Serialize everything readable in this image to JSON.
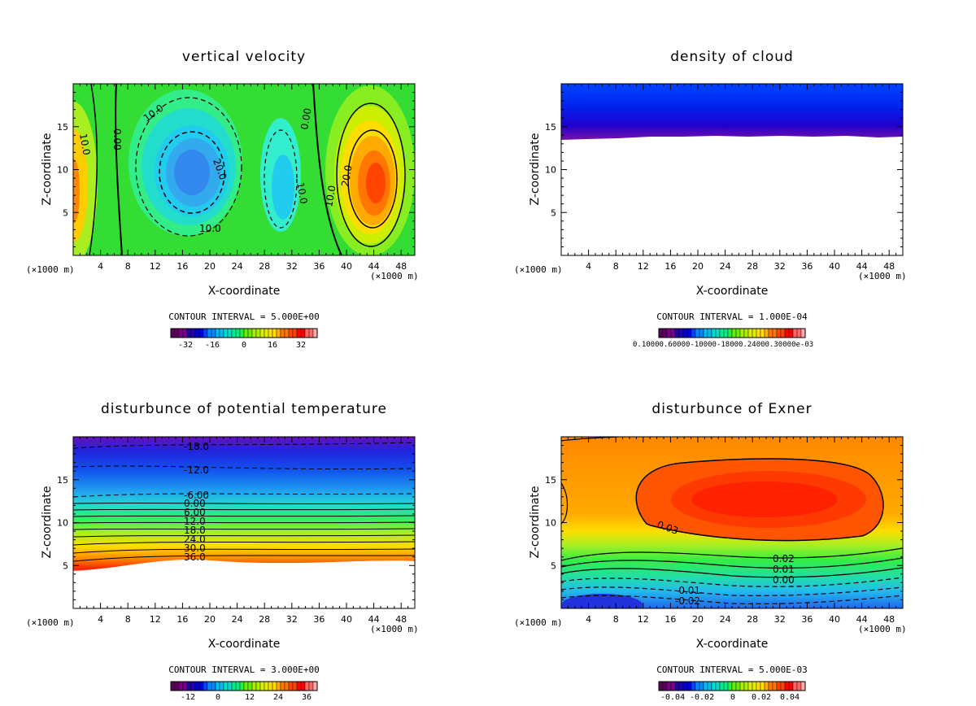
{
  "chart_data": [
    {
      "type": "heatmap",
      "title": "vertical velocity",
      "xlabel": "X-coordinate",
      "ylabel": "Z-coordinate",
      "x_unit": "(×1000 m)",
      "z_unit": "(×1000 m)",
      "xlim": [
        0,
        50
      ],
      "ylim": [
        0,
        20
      ],
      "xticks": [
        4,
        8,
        12,
        16,
        20,
        24,
        28,
        32,
        36,
        40,
        44,
        48
      ],
      "yticks": [
        5,
        10,
        15
      ],
      "contour_interval": "CONTOUR INTERVAL = 5.000E+00",
      "contour_labels": [
        "10.0",
        "0.00",
        "10.0",
        "20.0",
        "10.0",
        "0.00",
        "10.0",
        "10.0",
        "20.0"
      ],
      "colorbar": {
        "ticks": [
          "-32",
          "-16",
          "0",
          "16",
          "32"
        ],
        "range": [
          -36,
          36
        ]
      }
    },
    {
      "type": "heatmap",
      "title": "density of cloud",
      "xlabel": "X-coordinate",
      "ylabel": "Z-coordinate",
      "x_unit": "(×1000 m)",
      "z_unit": "(×1000 m)",
      "xlim": [
        0,
        50
      ],
      "ylim": [
        0,
        20
      ],
      "xticks": [
        4,
        8,
        12,
        16,
        20,
        24,
        28,
        32,
        36,
        40,
        44,
        48
      ],
      "yticks": [
        5,
        10,
        15
      ],
      "contour_interval": "CONTOUR INTERVAL = 1.000E-04",
      "contour_labels": [],
      "colorbar": {
        "ticks_text": "0.10000.60000-10000-18000.24000.30000e-03",
        "range": [
          0,
          0.0012
        ]
      }
    },
    {
      "type": "heatmap",
      "title": "disturbunce of potential temperature",
      "xlabel": "X-coordinate",
      "ylabel": "Z-coordinate",
      "x_unit": "(×1000 m)",
      "z_unit": "(×1000 m)",
      "xlim": [
        0,
        50
      ],
      "ylim": [
        0,
        20
      ],
      "xticks": [
        4,
        8,
        12,
        16,
        20,
        24,
        28,
        32,
        36,
        40,
        44,
        48
      ],
      "yticks": [
        5,
        10,
        15
      ],
      "contour_interval": "CONTOUR INTERVAL = 3.000E+00",
      "contour_labels": [
        "-18.0",
        "-12.0",
        "-6.00",
        "0.00",
        "6.00",
        "12.0",
        "18.0",
        "24.0",
        "30.0",
        "36.0"
      ],
      "colorbar": {
        "ticks": [
          "-12",
          "0",
          "12",
          "24",
          "36"
        ],
        "range": [
          -18,
          42
        ]
      }
    },
    {
      "type": "heatmap",
      "title": "disturbunce of Exner",
      "xlabel": "X-coordinate",
      "ylabel": "Z-coordinate",
      "x_unit": "(×1000 m)",
      "z_unit": "(×1000 m)",
      "xlim": [
        0,
        50
      ],
      "ylim": [
        0,
        20
      ],
      "xticks": [
        4,
        8,
        12,
        16,
        20,
        24,
        28,
        32,
        36,
        40,
        44,
        48
      ],
      "yticks": [
        5,
        10,
        15
      ],
      "contour_interval": "CONTOUR INTERVAL = 5.000E-03",
      "contour_labels": [
        "0.03",
        "0.02",
        "0.01",
        "0.00",
        "-0.01",
        "-0.02"
      ],
      "colorbar": {
        "ticks": [
          "-0.04",
          "-0.02",
          "0",
          "0.02",
          "0.04"
        ],
        "range": [
          -0.045,
          0.045
        ]
      }
    }
  ]
}
